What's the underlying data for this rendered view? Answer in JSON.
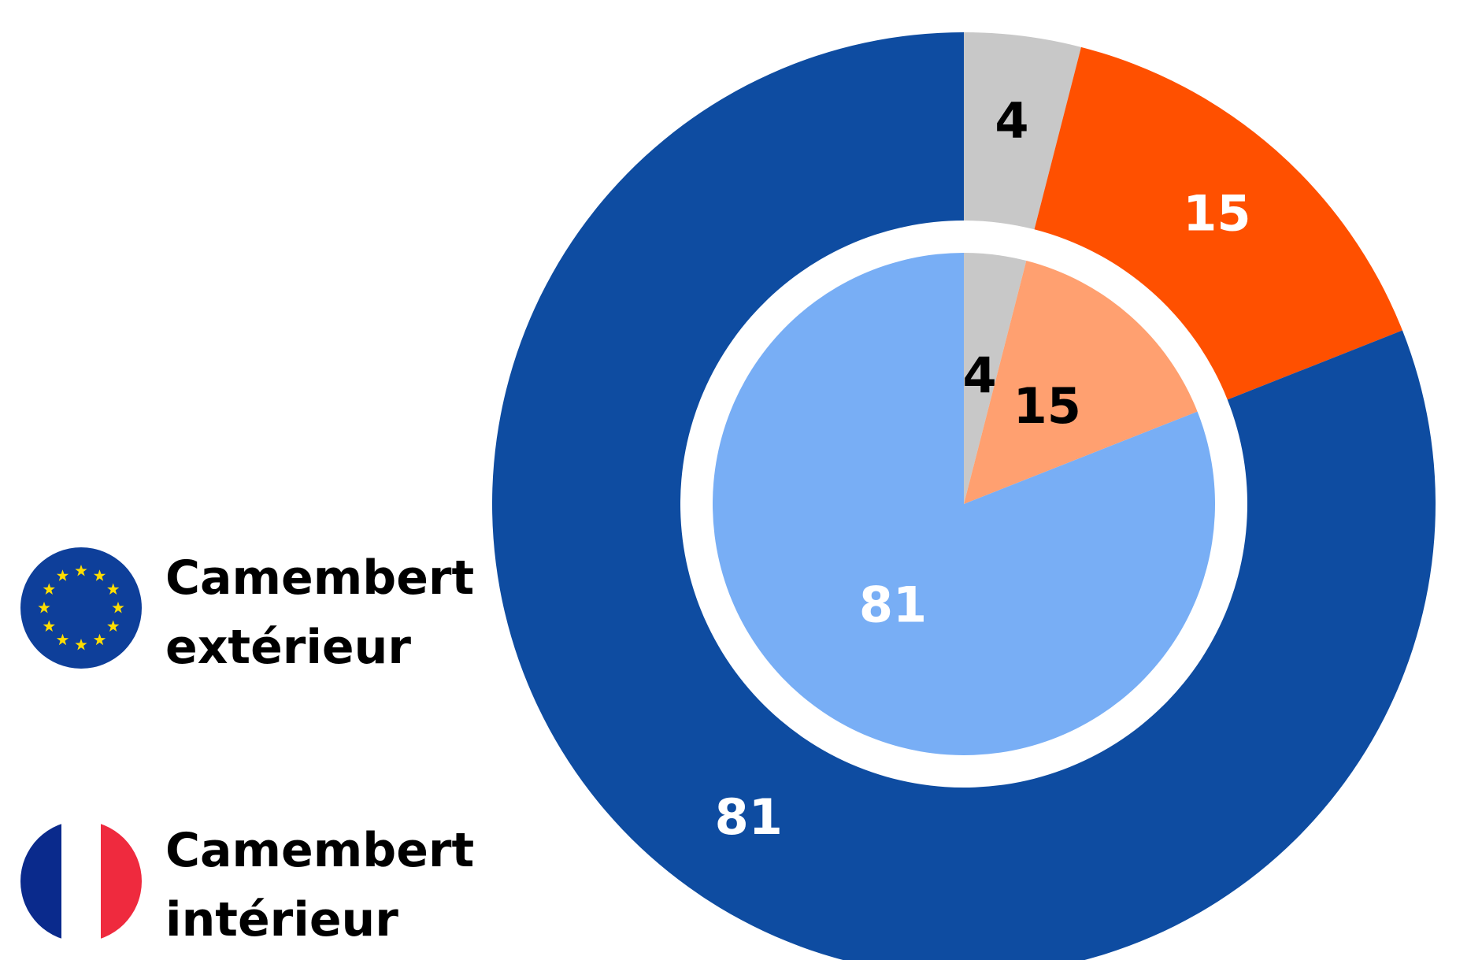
{
  "chart_data": {
    "type": "pie",
    "series": [
      {
        "name": "Camembert extérieur",
        "values": [
          4,
          15,
          81
        ],
        "colors": [
          "#c8c8c8",
          "#ff5000",
          "#0e4ca1"
        ]
      },
      {
        "name": "Camembert intérieur",
        "values": [
          4,
          15,
          81
        ],
        "colors": [
          "#c8c8c8",
          "#ffa070",
          "#78aef5"
        ]
      }
    ]
  }
}
